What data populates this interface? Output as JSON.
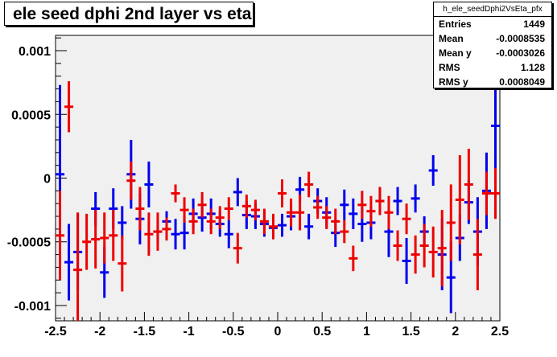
{
  "title": "ele seed dphi 2nd layer vs eta",
  "stats": {
    "name": "h_ele_seedDphi2VsEta_pfx",
    "rows": [
      {
        "label": "Entries",
        "value": "1449"
      },
      {
        "label": "Mean",
        "value": "-0.0008535"
      },
      {
        "label": "Mean y",
        "value": "-0.0003026"
      },
      {
        "label": "RMS",
        "value": "1.128"
      },
      {
        "label": "RMS y",
        "value": "0.0008049"
      }
    ]
  },
  "colors": {
    "background": "#ffffff",
    "frame": "#f0f0f0",
    "blue_series": "#0000ee",
    "red_series": "#ee0000"
  },
  "chart_data": {
    "type": "scatter",
    "xlim": [
      -2.5,
      2.5
    ],
    "ylim": [
      -0.00112,
      0.00112
    ],
    "x_ticks": [
      "-2.5",
      "-2",
      "-1.5",
      "-1",
      "-0.5",
      "0",
      "0.5",
      "1",
      "1.5",
      "2",
      "2.5"
    ],
    "x_tick_values": [
      -2.5,
      -2,
      -1.5,
      -1,
      -0.5,
      0,
      0.5,
      1,
      1.5,
      2,
      2.5
    ],
    "y_ticks": [
      "0.001",
      "0.0005",
      "0",
      "-0.0005",
      "-0.001"
    ],
    "y_tick_values": [
      0.001,
      0.0005,
      0,
      -0.0005,
      -0.001
    ],
    "series": [
      {
        "color": "blue",
        "bin_half_width": 0.05,
        "points": [
          {
            "x": -2.45,
            "y": 3e-05,
            "err": 0.0007
          },
          {
            "x": -2.35,
            "y": -0.00066,
            "err": 0.0003
          },
          {
            "x": -2.25,
            "y": -0.00058,
            "err": 0.0003
          },
          {
            "x": -2.05,
            "y": -0.00024,
            "err": 0.00013
          },
          {
            "x": -1.95,
            "y": -0.00074,
            "err": 0.0002
          },
          {
            "x": -1.85,
            "y": -0.00024,
            "err": 0.00016
          },
          {
            "x": -1.75,
            "y": -0.00035,
            "err": 0.00013
          },
          {
            "x": -1.65,
            "y": 3e-05,
            "err": 0.00027
          },
          {
            "x": -1.55,
            "y": -0.00032,
            "err": 0.0002
          },
          {
            "x": -1.45,
            "y": -5e-05,
            "err": 0.00018
          },
          {
            "x": -1.35,
            "y": -0.00042,
            "err": 0.0001
          },
          {
            "x": -1.25,
            "y": -0.00034,
            "err": 8e-05
          },
          {
            "x": -1.15,
            "y": -0.00044,
            "err": 0.00012
          },
          {
            "x": -1.05,
            "y": -0.00043,
            "err": 0.00013
          },
          {
            "x": -0.95,
            "y": -0.00028,
            "err": 0.00012
          },
          {
            "x": -0.85,
            "y": -0.00031,
            "err": 0.00011
          },
          {
            "x": -0.75,
            "y": -0.00028,
            "err": 0.00012
          },
          {
            "x": -0.65,
            "y": -0.00036,
            "err": 0.0001
          },
          {
            "x": -0.55,
            "y": -0.00044,
            "err": 0.00011
          },
          {
            "x": -0.45,
            "y": -0.00011,
            "err": 0.00011
          },
          {
            "x": -0.35,
            "y": -0.00029,
            "err": 0.00011
          },
          {
            "x": -0.25,
            "y": -0.0003,
            "err": 0.0001
          },
          {
            "x": -0.15,
            "y": -0.00036,
            "err": 0.0001
          },
          {
            "x": -0.05,
            "y": -0.00039,
            "err": 9e-05
          },
          {
            "x": 0.05,
            "y": -0.00037,
            "err": 9e-05
          },
          {
            "x": 0.15,
            "y": -0.0003,
            "err": 0.00011
          },
          {
            "x": 0.25,
            "y": -9e-05,
            "err": 0.0001
          },
          {
            "x": 0.35,
            "y": -0.00038,
            "err": 0.0001
          },
          {
            "x": 0.45,
            "y": -0.00018,
            "err": 0.0001
          },
          {
            "x": 0.55,
            "y": -0.00027,
            "err": 0.00012
          },
          {
            "x": 0.65,
            "y": -0.00043,
            "err": 0.00011
          },
          {
            "x": 0.75,
            "y": -0.00021,
            "err": 0.00012
          },
          {
            "x": 0.85,
            "y": -0.00028,
            "err": 0.00012
          },
          {
            "x": 0.95,
            "y": -0.00036,
            "err": 0.00014
          },
          {
            "x": 1.05,
            "y": -0.00035,
            "err": 0.00013
          },
          {
            "x": 1.15,
            "y": -0.00018,
            "err": 0.00011
          },
          {
            "x": 1.25,
            "y": -0.00042,
            "err": 0.0002
          },
          {
            "x": 1.35,
            "y": -0.00018,
            "err": 0.00011
          },
          {
            "x": 1.45,
            "y": -0.00065,
            "err": 0.00018
          },
          {
            "x": 1.55,
            "y": -0.00016,
            "err": 0.00011
          },
          {
            "x": 1.65,
            "y": -0.00042,
            "err": 0.00012
          },
          {
            "x": 1.75,
            "y": 6e-05,
            "err": 0.00012
          },
          {
            "x": 1.85,
            "y": -0.0006,
            "err": 0.00028
          },
          {
            "x": 1.95,
            "y": -0.00078,
            "err": 0.00028
          },
          {
            "x": 2.05,
            "y": -0.00047,
            "err": 0.00018
          },
          {
            "x": 2.15,
            "y": -0.00019,
            "err": 0.00017
          },
          {
            "x": 2.25,
            "y": -0.00042,
            "err": 0.00027
          },
          {
            "x": 2.35,
            "y": -0.0001,
            "err": 0.0003
          },
          {
            "x": 2.45,
            "y": 0.00041,
            "err": 0.00036
          }
        ]
      },
      {
        "color": "red",
        "bin_half_width": 0.05,
        "points": [
          {
            "x": -2.45,
            "y": -0.00045,
            "err": 0.00035
          },
          {
            "x": -2.35,
            "y": 0.00056,
            "err": 0.0002
          },
          {
            "x": -2.25,
            "y": -0.00072,
            "err": 0.00045
          },
          {
            "x": -2.15,
            "y": -0.0005,
            "err": 0.00022
          },
          {
            "x": -2.05,
            "y": -0.00048,
            "err": 0.00023
          },
          {
            "x": -1.95,
            "y": -0.00047,
            "err": 0.0002
          },
          {
            "x": -1.85,
            "y": -0.00045,
            "err": 0.0002
          },
          {
            "x": -1.75,
            "y": -0.00067,
            "err": 0.00022
          },
          {
            "x": -1.65,
            "y": -2e-05,
            "err": 0.00015
          },
          {
            "x": -1.55,
            "y": -0.00024,
            "err": 0.00017
          },
          {
            "x": -1.45,
            "y": -0.00044,
            "err": 0.00017
          },
          {
            "x": -1.35,
            "y": -0.00042,
            "err": 0.00015
          },
          {
            "x": -1.25,
            "y": -0.0004,
            "err": 9e-05
          },
          {
            "x": -1.15,
            "y": -0.00012,
            "err": 7e-05
          },
          {
            "x": -1.05,
            "y": -0.00025,
            "err": 0.0001
          },
          {
            "x": -0.95,
            "y": -0.00034,
            "err": 0.0001
          },
          {
            "x": -0.85,
            "y": -0.00021,
            "err": 0.0001
          },
          {
            "x": -0.75,
            "y": -0.00034,
            "err": 0.0001
          },
          {
            "x": -0.65,
            "y": -0.00031,
            "err": 9e-05
          },
          {
            "x": -0.55,
            "y": -0.00024,
            "err": 9e-05
          },
          {
            "x": -0.45,
            "y": -0.00055,
            "err": 0.00012
          },
          {
            "x": -0.35,
            "y": -0.00022,
            "err": 9e-05
          },
          {
            "x": -0.25,
            "y": -0.00025,
            "err": 8e-05
          },
          {
            "x": -0.15,
            "y": -0.00034,
            "err": 0.0001
          },
          {
            "x": -0.05,
            "y": -0.00038,
            "err": 0.0001
          },
          {
            "x": 0.05,
            "y": -0.00012,
            "err": 0.00011
          },
          {
            "x": 0.15,
            "y": -0.00027,
            "err": 0.00011
          },
          {
            "x": 0.25,
            "y": -0.00027,
            "err": 0.00014
          },
          {
            "x": 0.35,
            "y": -5e-05,
            "err": 0.0001
          },
          {
            "x": 0.45,
            "y": -0.00023,
            "err": 9e-05
          },
          {
            "x": 0.55,
            "y": -0.00031,
            "err": 9e-05
          },
          {
            "x": 0.65,
            "y": -0.00034,
            "err": 0.0001
          },
          {
            "x": 0.75,
            "y": -0.00042,
            "err": 9e-05
          },
          {
            "x": 0.85,
            "y": -0.00063,
            "err": 0.0001
          },
          {
            "x": 0.95,
            "y": -0.00021,
            "err": 0.00011
          },
          {
            "x": 1.05,
            "y": -0.00026,
            "err": 0.00012
          },
          {
            "x": 1.15,
            "y": -0.00018,
            "err": 0.00011
          },
          {
            "x": 1.25,
            "y": -0.00027,
            "err": 0.00013
          },
          {
            "x": 1.35,
            "y": -0.00053,
            "err": 0.00012
          },
          {
            "x": 1.45,
            "y": -0.00032,
            "err": 0.00012
          },
          {
            "x": 1.55,
            "y": -0.0006,
            "err": 0.00015
          },
          {
            "x": 1.65,
            "y": -0.00053,
            "err": 0.00017
          },
          {
            "x": 1.75,
            "y": -0.00058,
            "err": 0.0002
          },
          {
            "x": 1.85,
            "y": -0.00055,
            "err": 0.0003
          },
          {
            "x": 1.95,
            "y": -0.00035,
            "err": 0.0003
          },
          {
            "x": 2.05,
            "y": -0.00017,
            "err": 0.00035
          },
          {
            "x": 2.15,
            "y": -5e-05,
            "err": 0.00028
          },
          {
            "x": 2.25,
            "y": -0.0006,
            "err": 0.00028
          },
          {
            "x": 2.35,
            "y": -0.00012,
            "err": 0.00017
          },
          {
            "x": 2.45,
            "y": -0.00012,
            "err": 0.0002
          }
        ]
      }
    ]
  }
}
